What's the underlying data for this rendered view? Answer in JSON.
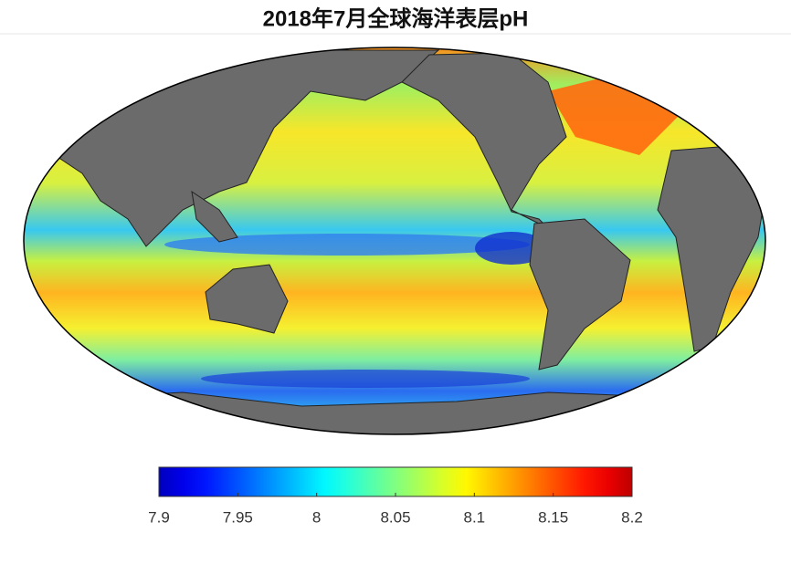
{
  "title": "2018年7月全球海洋表层pH",
  "colorbar": {
    "type": "colorbar",
    "colormap": "jet",
    "lim": [
      7.9,
      8.2
    ],
    "ticks": [
      7.9,
      7.95,
      8,
      8.05,
      8.1,
      8.15,
      8.2
    ]
  }
}
